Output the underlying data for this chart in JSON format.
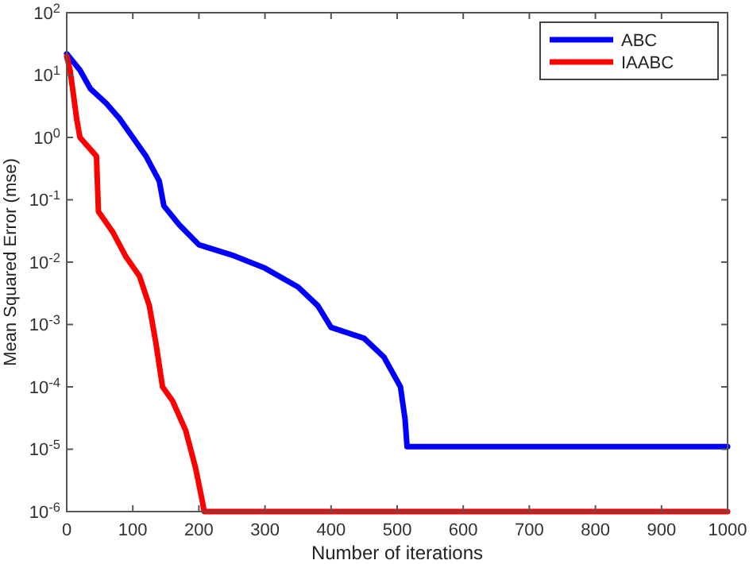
{
  "chart_data": {
    "type": "line",
    "xlabel": "Number of iterations",
    "ylabel": "Mean Squared Error (mse)",
    "log": "y",
    "grid": false,
    "legend": "top right",
    "line_style": "solid",
    "marker": "none",
    "xlim": [
      0,
      1000
    ],
    "xticks": [
      0,
      100,
      200,
      300,
      400,
      500,
      600,
      700,
      800,
      900,
      1000
    ],
    "ylim": [
      1e-06,
      100
    ],
    "yticks": [
      {
        "value": 1e-06,
        "label": "10$^{-6}$"
      },
      {
        "value": 1e-05,
        "label": "10$^{-5}$"
      },
      {
        "value": 0.0001,
        "label": "10$^{-4}$"
      },
      {
        "value": 0.001,
        "label": "10$^{-3}$"
      },
      {
        "value": 0.01,
        "label": "10$^{-2}$"
      },
      {
        "value": 0.1,
        "label": "10$^{-1}$"
      },
      {
        "value": 1,
        "label": "10$^{0}$"
      },
      {
        "value": 10,
        "label": "10$^{1}$"
      },
      {
        "value": 100,
        "label": "10$^{2}$"
      }
    ],
    "series": [
      {
        "name": "ABC",
        "color": "#0000ff",
        "x": [
          0,
          20,
          36,
          60,
          80,
          100,
          120,
          140,
          147,
          170,
          200,
          250,
          300,
          350,
          380,
          400,
          450,
          480,
          505,
          512,
          515,
          1000
        ],
        "values": [
          22,
          12,
          6,
          3.5,
          2,
          1,
          0.5,
          0.2,
          0.08,
          0.04,
          0.019,
          0.013,
          0.008,
          0.004,
          0.002,
          0.0009,
          0.0006,
          0.0003,
          0.0001,
          3e-05,
          1.1e-05,
          1.1e-05
        ]
      },
      {
        "name": "IAABC",
        "color": "#ff0000",
        "x": [
          0,
          5,
          10,
          15,
          20,
          45,
          48,
          70,
          90,
          110,
          125,
          135,
          145,
          160,
          180,
          195,
          205,
          208,
          1000
        ],
        "values": [
          20,
          12,
          5,
          2,
          1,
          0.5,
          0.065,
          0.03,
          0.012,
          0.006,
          0.002,
          0.0005,
          0.0001,
          6e-05,
          2e-05,
          5e-06,
          1.5e-06,
          1e-06,
          1e-06
        ]
      }
    ]
  }
}
